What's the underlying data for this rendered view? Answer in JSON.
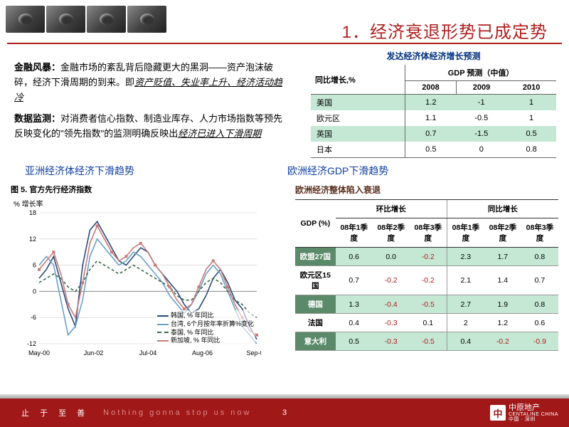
{
  "title": "1．经济衰退形势已成定势",
  "para1_bold": "金融风暴：",
  "para1_text": "金融市场的紊乱背后隐藏更大的黑洞——资产泡沫破碎，经济下滑周期的到来。即",
  "para1_ul": "资产贬值、失业率上升、经济活动趋冷",
  "para2_bold": "数据监测：",
  "para2_text": "对消费者信心指数、制造业库存、人力市场指数等预先反映变化的\"领先指数\"的监测明确反映出",
  "para2_ul": "经济已进入下滑周期",
  "forecast": {
    "title": "发达经济体经济增长预测",
    "corner": "同比增长,%",
    "header": "GDP 预测（中值）",
    "years": [
      "2008",
      "2009",
      "2010"
    ],
    "rows": [
      {
        "label": "美国",
        "values": [
          "1.2",
          "-1",
          "1"
        ],
        "hl": true
      },
      {
        "label": "欧元区",
        "values": [
          "1.1",
          "-0.5",
          "1"
        ],
        "hl": false
      },
      {
        "label": "英国",
        "values": [
          "0.7",
          "-1.5",
          "0.5"
        ],
        "hl": true
      },
      {
        "label": "日本",
        "values": [
          "0.5",
          "0",
          "0.8"
        ],
        "hl": false
      }
    ]
  },
  "section_left": "亚洲经济体经济下滑趋势",
  "section_right": "欧洲经济GDP下滑趋势",
  "chart": {
    "caption": "图 5. 官方先行经济指数",
    "ylabel": "% 增长率",
    "yticks": [
      18,
      12,
      6,
      0,
      -6,
      -12
    ],
    "xticks": [
      "May-00",
      "Jun-02",
      "Jul-04",
      "Aug-06",
      "Sep-08"
    ],
    "series": [
      {
        "name": "韩国, % 年同比",
        "color": "#2a4a7a",
        "dash": "",
        "marker": false,
        "points": [
          3,
          5,
          8,
          2,
          -4,
          -8,
          6,
          14,
          16,
          13,
          10,
          7,
          6,
          8,
          10,
          9,
          6,
          4,
          2,
          0,
          -3,
          -5,
          -4,
          -1,
          3,
          5,
          2,
          -2,
          -4,
          -8,
          -11
        ]
      },
      {
        "name": "台湾, 6个月按年率折算%变化",
        "color": "#6aa0c8",
        "dash": "",
        "marker": false,
        "points": [
          6,
          8,
          6,
          -2,
          -10,
          -8,
          -2,
          8,
          12,
          10,
          8,
          6,
          7,
          9,
          8,
          6,
          4,
          2,
          -1,
          -3,
          -5,
          -3,
          0,
          4,
          6,
          4,
          0,
          -4,
          -8,
          -10,
          -12
        ]
      },
      {
        "name": "泰国, % 年同比",
        "color": "#3a6a4a",
        "dash": "4,3",
        "marker": false,
        "points": [
          2,
          3,
          4,
          3,
          1,
          0,
          2,
          5,
          7,
          6,
          5,
          4,
          5,
          6,
          5,
          4,
          3,
          2,
          1,
          -1,
          -2,
          -2,
          0,
          2,
          3,
          2,
          0,
          -2,
          -3,
          -5,
          -6
        ]
      },
      {
        "name": "新加坡, % 年同比",
        "color": "#c87a7a",
        "dash": "",
        "marker": true,
        "points": [
          5,
          7,
          9,
          4,
          -3,
          -6,
          2,
          11,
          15,
          12,
          9,
          7,
          8,
          10,
          11,
          9,
          6,
          4,
          1,
          -2,
          -4,
          -3,
          1,
          5,
          7,
          5,
          1,
          -3,
          -6,
          -9,
          -10
        ]
      }
    ],
    "ylim": [
      -12,
      18
    ],
    "grid_color": "#ccc"
  },
  "euro": {
    "subtitle": "欧洲经济整体陷入衰退",
    "gdp_label": "GDP (%)",
    "group1": "环比增长",
    "group2": "同比增长",
    "cols": [
      "08年1季度",
      "08年2季度",
      "08年3季度",
      "08年1季度",
      "08年2季度",
      "08年3季度"
    ],
    "rows": [
      {
        "label": "欧盟27国",
        "hl": true,
        "v": [
          "0.6",
          "0.0",
          "-0.2",
          "2.3",
          "1.7",
          "0.8"
        ]
      },
      {
        "label": "欧元区15国",
        "hl": false,
        "v": [
          "0.7",
          "-0.2",
          "-0.2",
          "2.1",
          "1.4",
          "0.7"
        ]
      },
      {
        "label": "德国",
        "hl": true,
        "v": [
          "1.3",
          "-0.4",
          "-0.5",
          "2.7",
          "1.9",
          "0.8"
        ]
      },
      {
        "label": "法国",
        "hl": false,
        "v": [
          "0.4",
          "-0.3",
          "0.1",
          "2",
          "1.2",
          "0.6"
        ]
      },
      {
        "label": "意大利",
        "hl": true,
        "v": [
          "0.5",
          "-0.3",
          "-0.5",
          "0.4",
          "-0.2",
          "-0.9"
        ]
      }
    ]
  },
  "footer": {
    "motto1": "止 于 至 善",
    "motto2": "Nothing gonna stop us now",
    "page": "3",
    "brand_cn": "中原地产",
    "brand_en": "CENTALINE CHINA",
    "brand_sub": "中国 · 深圳"
  }
}
